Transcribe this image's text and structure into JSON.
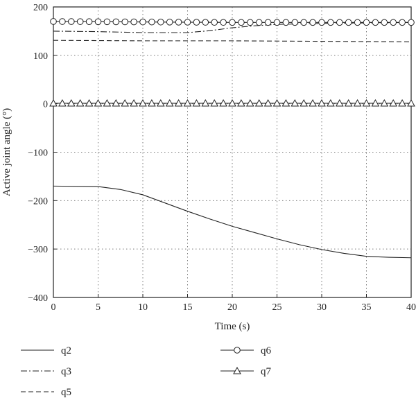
{
  "chart_data": {
    "type": "line",
    "xlabel": "Time (s)",
    "ylabel": "Active joint angle (°)",
    "xlim": [
      0,
      40
    ],
    "ylim": [
      -400,
      200
    ],
    "xticks": [
      0,
      5,
      10,
      15,
      20,
      25,
      30,
      35,
      40
    ],
    "yticks": [
      -400,
      -300,
      -200,
      -100,
      0,
      100,
      200
    ],
    "grid": true,
    "legend_position": "bottom",
    "series": [
      {
        "name": "q2",
        "style": "solid",
        "x": [
          0,
          5,
          7.5,
          10,
          12.5,
          15,
          17.5,
          20,
          22.5,
          25,
          27.5,
          30,
          32.5,
          35,
          37.5,
          40
        ],
        "y": [
          -170,
          -171,
          -177,
          -188,
          -205,
          -222,
          -238,
          -253,
          -266,
          -279,
          -291,
          -301,
          -309,
          -315,
          -317,
          -318
        ]
      },
      {
        "name": "q3",
        "style": "dashdot",
        "x": [
          0,
          5,
          10,
          15,
          17.5,
          20,
          22.5,
          25,
          30,
          35,
          40
        ],
        "y": [
          150,
          149,
          147,
          147,
          151,
          157,
          161,
          164,
          166,
          167,
          168
        ]
      },
      {
        "name": "q5",
        "style": "dashed",
        "x": [
          0,
          10,
          20,
          30,
          40
        ],
        "y": [
          131,
          130,
          130,
          129,
          128
        ]
      },
      {
        "name": "q6",
        "style": "circle",
        "x": [
          0,
          10,
          20,
          30,
          40
        ],
        "y": [
          170,
          169,
          168,
          168,
          168
        ]
      },
      {
        "name": "q7",
        "style": "triangle",
        "x": [
          0,
          40
        ],
        "y": [
          1,
          1
        ]
      }
    ]
  }
}
